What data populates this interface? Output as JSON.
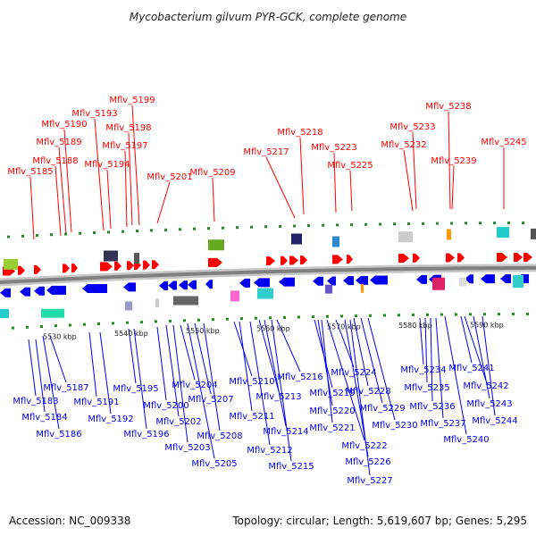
{
  "title": "Mycobacterium gilvum PYR-GCK, complete genome",
  "accession": "Accession: NC_009338",
  "summary": "Topology: circular; Length: 5,619,607 bp; Genes: 5,295",
  "colors": {
    "forward": "#ff0000",
    "reverse": "#0000ee",
    "backbone": "#808080",
    "dot": "#228b22"
  },
  "ticks": [
    "5530 kbp",
    "5540 kbp",
    "5550 kbp",
    "5560 kbp",
    "5570 kbp",
    "5580 kbp",
    "5590 kbp"
  ],
  "top_labels": [
    "Mflv_5185",
    "Mflv_5188",
    "Mflv_5189",
    "Mflv_5190",
    "Mflv_5193",
    "Mflv_5194",
    "Mflv_5197",
    "Mflv_5198",
    "Mflv_5199",
    "Mflv_5201",
    "Mflv_5209",
    "Mflv_5217",
    "Mflv_5218",
    "Mflv_5223",
    "Mflv_5225",
    "Mflv_5232",
    "Mflv_5233",
    "Mflv_5238",
    "Mflv_5239",
    "Mflv_5245"
  ],
  "bottom_labels": [
    "Mflv_5183",
    "Mflv_5184",
    "Mflv_5186",
    "Mflv_5187",
    "Mflv_5191",
    "Mflv_5192",
    "Mflv_5195",
    "Mflv_5196",
    "Mflv_5200",
    "Mflv_5202",
    "Mflv_5203",
    "Mflv_5204",
    "Mflv_5205",
    "Mflv_5207",
    "Mflv_5208",
    "Mflv_5210",
    "Mflv_5211",
    "Mflv_5212",
    "Mflv_5213",
    "Mflv_5214",
    "Mflv_5215",
    "Mflv_5216",
    "Mflv_5219",
    "Mflv_5220",
    "Mflv_5221",
    "Mflv_5222",
    "Mflv_5224",
    "Mflv_5226",
    "Mflv_5227",
    "Mflv_5228",
    "Mflv_5229",
    "Mflv_5230",
    "Mflv_5234",
    "Mflv_5235",
    "Mflv_5236",
    "Mflv_5237",
    "Mflv_5240",
    "Mflv_5241",
    "Mflv_5242",
    "Mflv_5243",
    "Mflv_5244"
  ]
}
